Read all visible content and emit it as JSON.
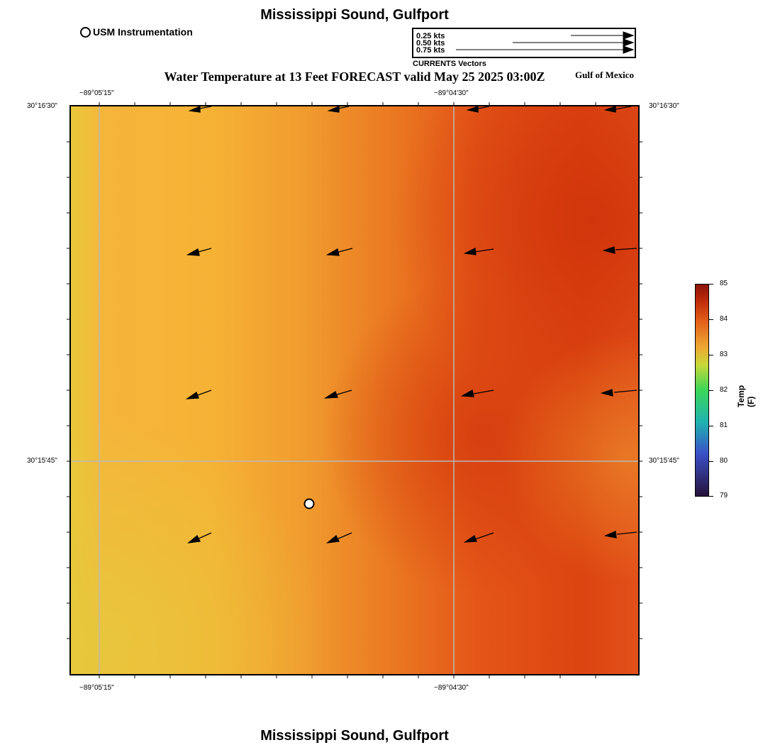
{
  "header": {
    "top_title": "Mississippi Sound, Gulfport",
    "bottom_title": "Mississippi Sound, Gulfport",
    "map_title": "Water Temperature at 13 Feet FORECAST valid May 25 2025 03:00Z",
    "region_label": "Gulf of Mexico"
  },
  "legend": {
    "instrument_label": "USM Instrumentation",
    "vector_caption": "CURRENTS Vectors",
    "vector_scale": [
      "0.25 kts",
      "0.50 kts",
      "0.75 kts"
    ]
  },
  "axes": {
    "lon_labels": [
      "−89°05'15\"",
      "−89°04'30\""
    ],
    "lat_labels": [
      "30°16'30\"",
      "30°15'45\""
    ]
  },
  "colorbar": {
    "title": "Temp (F)",
    "ticks": [
      "85",
      "84",
      "83",
      "82",
      "81",
      "80",
      "79"
    ],
    "min": 79,
    "max": 85
  },
  "colors": {
    "cool_edge": "#e5c93a",
    "mid": "#f0a030",
    "warm": "#e45a15",
    "hot": "#d43a0c",
    "grid": "#b9b9b9",
    "arrow": "#000000"
  },
  "current_arrows_count_note": "",
  "map_content": {
    "instrument_station": {
      "label": "USM Instrumentation"
    }
  }
}
